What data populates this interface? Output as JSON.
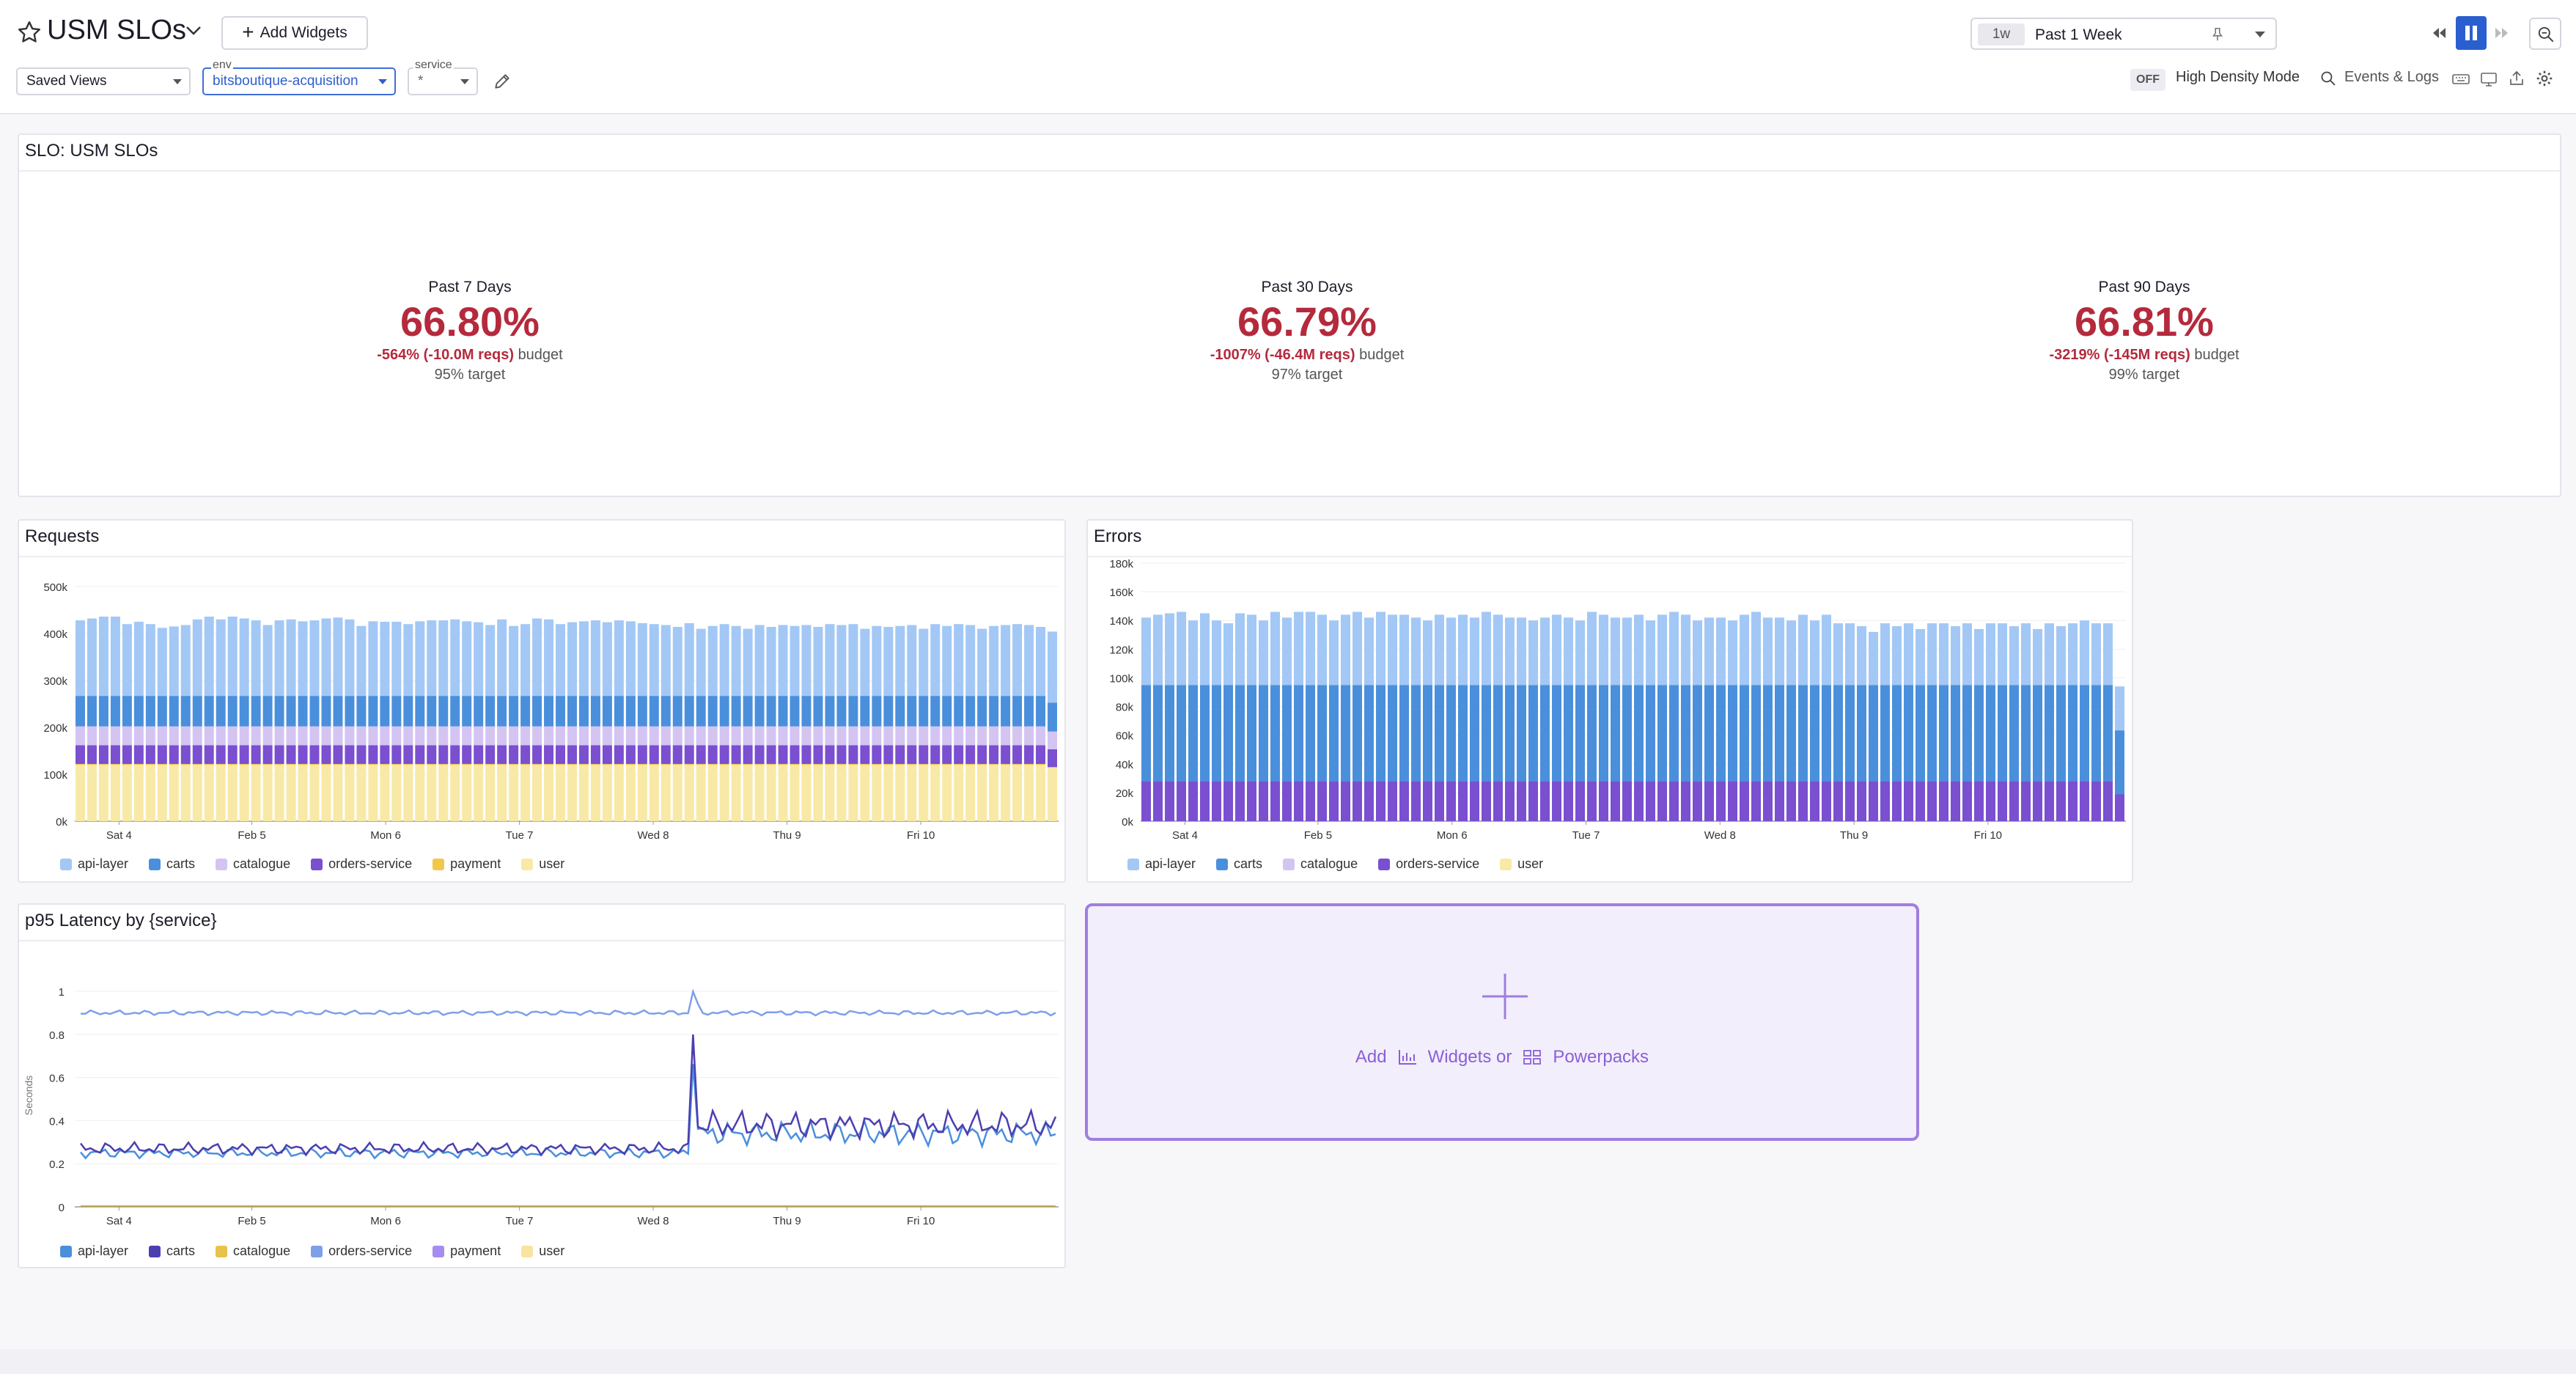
{
  "header": {
    "title": "USM SLOs",
    "add_widgets_label": "Add Widgets",
    "saved_views_label": "Saved Views",
    "env_label": "env",
    "env_value": "bitsboutique-acquisition",
    "service_label": "service",
    "service_value": "*",
    "time_badge": "1w",
    "time_range": "Past 1 Week",
    "density_toggle": "OFF",
    "density_label": "High Density Mode",
    "events_logs_label": "Events & Logs"
  },
  "slo_panel": {
    "title": "SLO: USM SLOs",
    "columns": [
      {
        "period": "Past 7 Days",
        "value": "66.80%",
        "budget_value": "-564% (-10.0M reqs)",
        "budget_suffix": "budget",
        "target": "95% target"
      },
      {
        "period": "Past 30 Days",
        "value": "66.79%",
        "budget_value": "-1007% (-46.4M reqs)",
        "budget_suffix": "budget",
        "target": "97% target"
      },
      {
        "period": "Past 90 Days",
        "value": "66.81%",
        "budget_value": "-3219% (-145M reqs)",
        "budget_suffix": "budget",
        "target": "99% target"
      }
    ]
  },
  "requests_panel": {
    "title": "Requests"
  },
  "errors_panel": {
    "title": "Errors"
  },
  "latency_panel": {
    "title": "p95 Latency by {service}",
    "ylabel": "Seconds"
  },
  "add_box": {
    "add": "Add",
    "widgets_or": "Widgets or",
    "powerpacks": "Powerpacks"
  },
  "colors": {
    "api-layer": "#a3c8f5",
    "carts": "#4a8fdc",
    "catalogue": "#d4c4f2",
    "orders-service": "#7a4fd0",
    "payment": "#f2c84a",
    "user": "#f8e9a6",
    "slo_red": "#b42a3c",
    "accent": "#2a5fd0"
  },
  "chart_data": [
    {
      "type": "bar",
      "title": "Requests",
      "stacked": true,
      "x_ticks": [
        "Sat 4",
        "Feb 5",
        "Mon 6",
        "Tue 7",
        "Wed 8",
        "Thu 9",
        "Fri 10"
      ],
      "y_ticks": [
        "0k",
        "100k",
        "200k",
        "300k",
        "400k",
        "500k"
      ],
      "ylim": [
        0,
        500000
      ],
      "legend": [
        "api-layer",
        "carts",
        "catalogue",
        "orders-service",
        "payment",
        "user"
      ],
      "series": [
        {
          "name": "user",
          "approx_value": 120000
        },
        {
          "name": "payment",
          "approx_value": 2000
        },
        {
          "name": "orders-service",
          "approx_value": 40000
        },
        {
          "name": "catalogue",
          "approx_value": 40000
        },
        {
          "name": "carts",
          "approx_value": 65000
        },
        {
          "name": "api-layer",
          "approx_value": 160000
        }
      ],
      "approx_total_per_bar": [
        428000,
        432000,
        436000,
        436000,
        420000,
        425000,
        420000,
        412000,
        415000,
        418000,
        430000,
        436000,
        430000,
        436000,
        432000,
        428000,
        418000,
        428000,
        430000,
        426000,
        428000,
        432000,
        434000,
        430000,
        416000,
        426000,
        425000,
        425000,
        420000,
        426000,
        428000,
        428000,
        430000,
        426000,
        424000,
        418000,
        430000,
        416000,
        420000,
        432000,
        430000,
        420000,
        424000,
        426000,
        428000,
        424000,
        428000,
        426000,
        422000,
        420000,
        418000,
        414000,
        422000,
        410000,
        416000,
        420000,
        416000,
        410000,
        418000,
        414000,
        418000,
        416000,
        418000,
        414000,
        420000,
        418000,
        420000,
        410000,
        416000,
        414000,
        416000,
        418000,
        410000,
        420000,
        416000,
        420000,
        418000,
        410000,
        416000,
        418000,
        420000,
        418000,
        414000,
        404000
      ]
    },
    {
      "type": "bar",
      "title": "Errors",
      "stacked": true,
      "x_ticks": [
        "Sat 4",
        "Feb 5",
        "Mon 6",
        "Tue 7",
        "Wed 8",
        "Thu 9",
        "Fri 10"
      ],
      "y_ticks": [
        "0k",
        "20k",
        "40k",
        "60k",
        "80k",
        "100k",
        "120k",
        "140k",
        "160k",
        "180k"
      ],
      "ylim": [
        0,
        180000
      ],
      "legend": [
        "api-layer",
        "carts",
        "catalogue",
        "orders-service",
        "user"
      ],
      "series": [
        {
          "name": "orders-service",
          "approx_value": 28000
        },
        {
          "name": "carts",
          "approx_value": 67000
        },
        {
          "name": "api-layer",
          "approx_value": 46000
        }
      ],
      "approx_total_per_bar": [
        142000,
        144000,
        145000,
        146000,
        140000,
        145000,
        140000,
        138000,
        145000,
        144000,
        140000,
        146000,
        142000,
        146000,
        146000,
        144000,
        140000,
        144000,
        146000,
        142000,
        146000,
        144000,
        144000,
        142000,
        140000,
        144000,
        142000,
        144000,
        142000,
        146000,
        144000,
        142000,
        142000,
        140000,
        142000,
        144000,
        142000,
        140000,
        146000,
        144000,
        142000,
        142000,
        144000,
        140000,
        144000,
        146000,
        144000,
        140000,
        142000,
        142000,
        140000,
        144000,
        146000,
        142000,
        142000,
        140000,
        144000,
        140000,
        144000,
        138000,
        138000,
        136000,
        132000,
        138000,
        136000,
        138000,
        134000,
        138000,
        138000,
        136000,
        138000,
        134000,
        138000,
        138000,
        136000,
        138000,
        134000,
        138000,
        136000,
        138000,
        140000,
        138000,
        138000,
        94000
      ]
    },
    {
      "type": "line",
      "title": "p95 Latency by {service}",
      "ylabel": "Seconds",
      "x_ticks": [
        "Sat 4",
        "Feb 5",
        "Mon 6",
        "Tue 7",
        "Wed 8",
        "Thu 9",
        "Fri 10"
      ],
      "y_ticks": [
        "0",
        "0.2",
        "0.4",
        "0.6",
        "0.8",
        "1"
      ],
      "ylim": [
        0,
        1.05
      ],
      "legend": [
        "api-layer",
        "carts",
        "catalogue",
        "orders-service",
        "payment",
        "user"
      ],
      "series": [
        {
          "name": "orders-service",
          "approx_level": 0.9,
          "spike_at": "Wed 8",
          "spike_value": 1.0
        },
        {
          "name": "carts",
          "approx_level": 0.27,
          "after_spike_level": 0.38,
          "spike_value": 0.83
        },
        {
          "name": "api-layer",
          "approx_level": 0.25,
          "after_spike_level": 0.34,
          "spike_value": 0.72
        },
        {
          "name": "user",
          "approx_level": 0.0
        }
      ]
    }
  ]
}
